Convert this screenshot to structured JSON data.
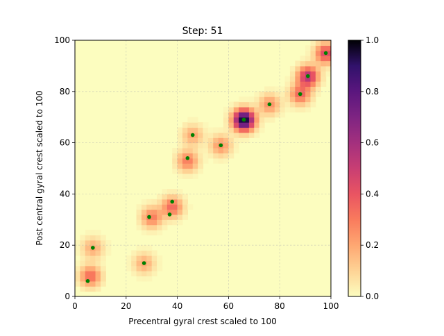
{
  "chart_data": {
    "type": "heatmap",
    "title": "Step: 51",
    "xlabel": "Precentral gyral crest scaled to 100",
    "ylabel": "Post central gyral crest scaled to 100",
    "xlim": [
      0,
      100
    ],
    "ylim": [
      0,
      100
    ],
    "xticks": [
      "0",
      "20",
      "40",
      "60",
      "80",
      "100"
    ],
    "yticks": [
      "0",
      "20",
      "40",
      "60",
      "80",
      "100"
    ],
    "grid": true,
    "colormap": "magma_r",
    "colorbar": {
      "range": [
        0,
        1
      ],
      "ticks": [
        "0.0",
        "0.2",
        "0.4",
        "0.6",
        "0.8",
        "1.0"
      ]
    },
    "points_color": "#008000",
    "points": [
      {
        "x": 5,
        "y": 6
      },
      {
        "x": 7,
        "y": 19
      },
      {
        "x": 27,
        "y": 13
      },
      {
        "x": 29,
        "y": 31
      },
      {
        "x": 37,
        "y": 32
      },
      {
        "x": 38,
        "y": 37
      },
      {
        "x": 44,
        "y": 54
      },
      {
        "x": 46,
        "y": 63
      },
      {
        "x": 57,
        "y": 59
      },
      {
        "x": 66,
        "y": 69
      },
      {
        "x": 76,
        "y": 75
      },
      {
        "x": 88,
        "y": 79
      },
      {
        "x": 91,
        "y": 86
      },
      {
        "x": 98,
        "y": 95
      }
    ],
    "density_peaks": [
      {
        "x": 66,
        "y": 69,
        "value": 1.0
      },
      {
        "x": 91,
        "y": 86,
        "value": 0.55
      },
      {
        "x": 98,
        "y": 95,
        "value": 0.45
      },
      {
        "x": 88,
        "y": 79,
        "value": 0.35
      },
      {
        "x": 6,
        "y": 8,
        "value": 0.35
      },
      {
        "x": 38,
        "y": 35,
        "value": 0.35
      },
      {
        "x": 44,
        "y": 53,
        "value": 0.3
      },
      {
        "x": 30,
        "y": 31,
        "value": 0.3
      },
      {
        "x": 57,
        "y": 59,
        "value": 0.25
      },
      {
        "x": 76,
        "y": 75,
        "value": 0.25
      },
      {
        "x": 46,
        "y": 63,
        "value": 0.2
      },
      {
        "x": 27,
        "y": 13,
        "value": 0.2
      },
      {
        "x": 7,
        "y": 19,
        "value": 0.2
      }
    ]
  }
}
